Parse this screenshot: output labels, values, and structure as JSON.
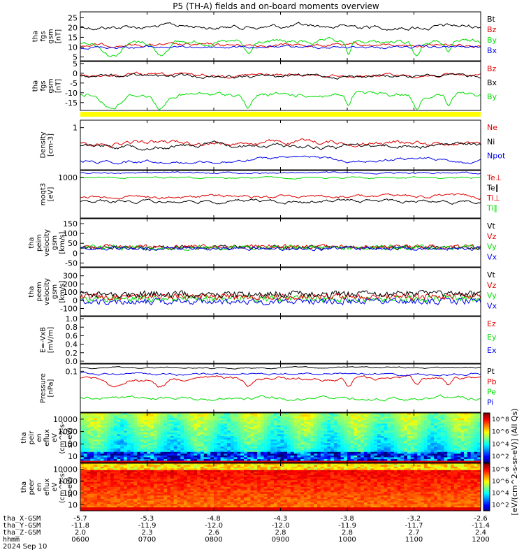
{
  "chart_data": {
    "type": "line",
    "title": "P5 (TH-A) fields and on-board moments overview",
    "date_label": "2024 Sep 10",
    "colors": {
      "black": "#000000",
      "red": "#e00000",
      "green": "#00dd00",
      "blue": "#0000ee",
      "yellow": "#ffff00"
    },
    "time_ticks": [
      "0600",
      "0700",
      "0800",
      "0900",
      "1000",
      "1100",
      "1200"
    ],
    "ephemeris": [
      {
        "label": "tha_X-GSM",
        "values": [
          "-5.7",
          "-5.3",
          "-4.8",
          "-4.3",
          "-3.8",
          "-3.2",
          "-2.6"
        ]
      },
      {
        "label": "tha_Y-GSM",
        "values": [
          "-11.8",
          "-11.9",
          "-12.0",
          "-12.0",
          "-11.9",
          "-11.7",
          "-11.4"
        ]
      },
      {
        "label": "tha_Z-GSM",
        "values": [
          "2.0",
          "2.3",
          "2.6",
          "2.8",
          "2.8",
          "2.7",
          "2.4"
        ]
      },
      {
        "label": "hhmm",
        "values": [
          "0600",
          "0700",
          "0800",
          "0900",
          "1000",
          "1100",
          "1200"
        ]
      }
    ],
    "panels": [
      {
        "id": "fgs-mag",
        "ylabel": [
          "tha",
          "fgs",
          "gsm",
          "[nT]"
        ],
        "ylim": [
          3,
          28
        ],
        "yticks": [
          "25",
          "20",
          "15",
          "10",
          "5"
        ],
        "series": [
          {
            "name": "Bt",
            "color": "black"
          },
          {
            "name": "Bz",
            "color": "red"
          },
          {
            "name": "By",
            "color": "green"
          },
          {
            "name": "Bx",
            "color": "blue"
          }
        ]
      },
      {
        "id": "fgs-components",
        "ylabel": [
          "tha",
          "fgs",
          "gsm",
          "[nT]"
        ],
        "ylim": [
          -19,
          6
        ],
        "yticks": [
          "5",
          "0",
          "-5",
          "-10",
          "-15"
        ],
        "series": [
          {
            "name": "Bz",
            "color": "red"
          },
          {
            "name": "Bx",
            "color": "black"
          },
          {
            "name": "By",
            "color": "green"
          }
        ]
      },
      {
        "id": "flag-bar",
        "ylabel": [],
        "series": []
      },
      {
        "id": "density",
        "ylabel": [
          "Density",
          "[cm-3]"
        ],
        "scale": "log",
        "yticks": [
          "1"
        ],
        "series": [
          {
            "name": "Ne",
            "color": "red"
          },
          {
            "name": "Ni",
            "color": "black"
          },
          {
            "name": "Npot",
            "color": "blue"
          }
        ]
      },
      {
        "id": "temperature",
        "ylabel": [
          "moqt3",
          "[eV]"
        ],
        "scale": "log",
        "yticks": [
          "1000"
        ],
        "series": [
          {
            "name": "Te⊥",
            "color": "red"
          },
          {
            "name": "Te∥",
            "color": "black"
          },
          {
            "name": "Ti⊥",
            "color": "red"
          },
          {
            "name": "Ti∥",
            "color": "green"
          }
        ]
      },
      {
        "id": "ion-velocity",
        "ylabel": [
          "tha",
          "peim",
          "velocity",
          "gsm",
          "[km/s]"
        ],
        "ylim": [
          -70,
          175
        ],
        "yticks": [
          "150",
          "100",
          "50",
          "0",
          "-50"
        ],
        "series": [
          {
            "name": "Vt",
            "color": "black"
          },
          {
            "name": "Vz",
            "color": "red"
          },
          {
            "name": "Vy",
            "color": "green"
          },
          {
            "name": "Vx",
            "color": "blue"
          }
        ]
      },
      {
        "id": "electron-velocity",
        "ylabel": [
          "tha",
          "peem",
          "velocity",
          "gsm",
          "[km/s]"
        ],
        "ylim": [
          -190,
          400
        ],
        "yticks": [
          "300",
          "200",
          "100",
          "0",
          "-100"
        ],
        "series": [
          {
            "name": "Vt",
            "color": "black"
          },
          {
            "name": "Vz",
            "color": "red"
          },
          {
            "name": "Vy",
            "color": "green"
          },
          {
            "name": "Vx",
            "color": "blue"
          }
        ]
      },
      {
        "id": "efield",
        "ylabel": [
          "E=-VxB",
          "[mV/m]"
        ],
        "ylim": [
          -0.05,
          1.05
        ],
        "yticks": [
          "1.0",
          "0.8",
          "0.6",
          "0.4",
          "0.2",
          "0.0"
        ],
        "series": [
          {
            "name": "Ez",
            "color": "red"
          },
          {
            "name": "Ey",
            "color": "green"
          },
          {
            "name": "Ex",
            "color": "blue"
          }
        ]
      },
      {
        "id": "pressure",
        "ylabel": [
          "Pressure",
          "[nPa]"
        ],
        "scale": "log",
        "yticks": [
          "0.1"
        ],
        "series": [
          {
            "name": "Pt",
            "color": "black"
          },
          {
            "name": "Pb",
            "color": "red"
          },
          {
            "name": "Pe",
            "color": "green"
          },
          {
            "name": "Pi",
            "color": "blue"
          }
        ]
      },
      {
        "id": "ion-spectrogram",
        "ylabel": [
          "tha",
          "peir",
          "en",
          "eflux",
          "eV",
          "(cm^2-s-",
          "sr-eV)"
        ],
        "scale": "log",
        "yticks": [
          "10000",
          "1000",
          "100",
          "10"
        ],
        "series": []
      },
      {
        "id": "electron-spectrogram",
        "ylabel": [
          "tha",
          "peer",
          "en",
          "eflux",
          "eV",
          "(cm^2-s-",
          "sr-eV)"
        ],
        "scale": "log",
        "yticks": [
          "10000",
          "1000",
          "100",
          "10"
        ],
        "series": []
      }
    ],
    "colorbar": {
      "label": "[eV/(cm^2-s-sr-eV)] (All Qs)",
      "top_ticks": [
        "10^8",
        "10^6",
        "10^4",
        "10^2"
      ],
      "bottom_ticks": [
        "10^8",
        "10^6",
        "10^4",
        "10^2"
      ]
    }
  }
}
